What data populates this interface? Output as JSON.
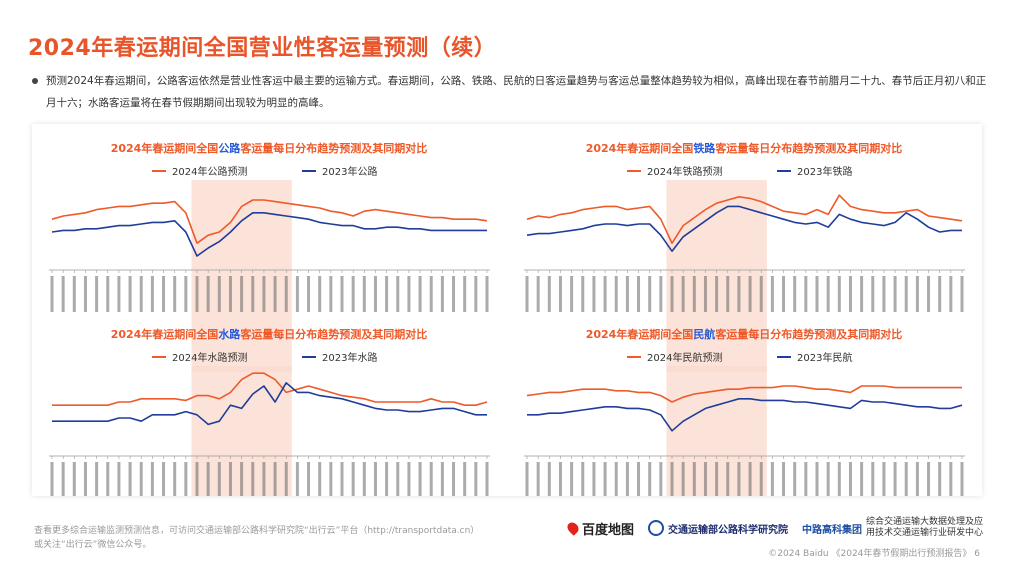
{
  "page": {
    "title": "2024年春运期间全国营业性客运量预测（续）",
    "bullet": "预测2024年春运期间，公路客运依然是营业性客运中最主要的运输方式。春运期间，公路、铁路、民航的日客运量趋势与客运总量整体趋势较为相似，高峰出现在春节前腊月二十九、春节后正月初八和正月十六；水路客运量将在春节假期期间出现较为明显的高峰。",
    "footer_line1": "查看更多综合运输监测预测信息，可访问交通运输部公路科学研究院“出行云”平台（http://transportdata.cn）",
    "footer_line2": "或关注“出行云”微信公众号。",
    "copyright": "©2024 Baidu 《2024年春节假期出行预测报告》 6",
    "logos": {
      "baidu": "百度地图",
      "transport_institute": "交通运输部公路科学研究院",
      "rioh": "中路高科集团",
      "rioh_sub1": "综合交通运输大数据处理及应",
      "rioh_sub2": "用技术交通运输行业研发中心"
    }
  },
  "colors": {
    "forecast": "#ee5a2a",
    "lastyear": "#1f3d99",
    "highlight": "#fbd9cc",
    "title_accent": "#ee5a2a",
    "mode_accent": "#2a5bd7"
  },
  "chart_data": [
    {
      "type": "line",
      "title_pre": "2024年春运期间全国",
      "title_mode": "公路",
      "title_post": "客运量每日分布趋势预测及其同期对比",
      "highlight_range": [
        13,
        21
      ],
      "series": [
        {
          "name": "2024年公路预测",
          "values": [
            58,
            60,
            61,
            62,
            64,
            65,
            66,
            66,
            67,
            68,
            68,
            69,
            62,
            43,
            48,
            50,
            56,
            66,
            70,
            70,
            69,
            68,
            67,
            66,
            65,
            63,
            62,
            60,
            63,
            64,
            63,
            62,
            61,
            60,
            59,
            59,
            58,
            58,
            58,
            57
          ]
        },
        {
          "name": "2023年公路",
          "values": [
            50,
            51,
            51,
            52,
            52,
            53,
            54,
            54,
            55,
            56,
            56,
            57,
            50,
            35,
            40,
            44,
            50,
            57,
            62,
            62,
            61,
            60,
            59,
            58,
            56,
            55,
            54,
            54,
            52,
            52,
            53,
            53,
            52,
            52,
            51,
            51,
            51,
            51,
            51,
            51
          ]
        }
      ]
    },
    {
      "type": "line",
      "title_pre": "2024年春运期间全国",
      "title_mode": "铁路",
      "title_post": "客运量每日分布趋势预测及其同期对比",
      "highlight_range": [
        13,
        21
      ],
      "series": [
        {
          "name": "2024年铁路预测",
          "values": [
            58,
            60,
            59,
            61,
            62,
            64,
            65,
            66,
            66,
            64,
            65,
            66,
            58,
            43,
            54,
            59,
            64,
            68,
            70,
            72,
            71,
            69,
            66,
            63,
            62,
            61,
            64,
            61,
            73,
            66,
            64,
            63,
            62,
            62,
            63,
            64,
            60,
            59,
            58,
            57
          ]
        },
        {
          "name": "2023年铁路",
          "values": [
            48,
            49,
            49,
            50,
            51,
            52,
            54,
            55,
            55,
            54,
            55,
            55,
            48,
            38,
            47,
            52,
            57,
            62,
            66,
            66,
            64,
            62,
            60,
            58,
            56,
            55,
            56,
            53,
            61,
            58,
            56,
            55,
            54,
            56,
            62,
            58,
            53,
            50,
            51,
            51
          ]
        }
      ]
    },
    {
      "type": "line",
      "title_pre": "2024年春运期间全国",
      "title_mode": "水路",
      "title_post": "客运量每日分布趋势预测及其同期对比",
      "highlight_range": [
        13,
        21
      ],
      "series": [
        {
          "name": "2024年水路预测",
          "values": [
            58,
            58,
            58,
            58,
            58,
            58,
            60,
            60,
            62,
            62,
            62,
            62,
            61,
            64,
            64,
            62,
            66,
            74,
            78,
            78,
            74,
            66,
            68,
            70,
            68,
            66,
            64,
            63,
            62,
            60,
            60,
            60,
            60,
            60,
            62,
            60,
            60,
            58,
            58,
            60
          ]
        },
        {
          "name": "2023年水路",
          "values": [
            48,
            48,
            48,
            48,
            48,
            48,
            50,
            50,
            48,
            52,
            52,
            52,
            54,
            52,
            46,
            48,
            58,
            56,
            65,
            70,
            60,
            72,
            66,
            66,
            64,
            63,
            62,
            60,
            58,
            56,
            55,
            55,
            54,
            54,
            55,
            56,
            56,
            54,
            52,
            52
          ]
        }
      ]
    },
    {
      "type": "line",
      "title_pre": "2024年春运期间全国",
      "title_mode": "民航",
      "title_post": "客运量每日分布趋势预测及其同期对比",
      "highlight_range": [
        13,
        21
      ],
      "series": [
        {
          "name": "2024年民航预测",
          "values": [
            64,
            65,
            66,
            66,
            67,
            68,
            68,
            68,
            67,
            67,
            66,
            66,
            64,
            60,
            63,
            65,
            66,
            67,
            68,
            68,
            69,
            69,
            69,
            70,
            70,
            69,
            68,
            68,
            67,
            66,
            70,
            70,
            70,
            69,
            69,
            69,
            69,
            69,
            69,
            69
          ]
        },
        {
          "name": "2023年民航",
          "values": [
            52,
            52,
            53,
            53,
            54,
            55,
            56,
            57,
            57,
            56,
            56,
            55,
            52,
            42,
            48,
            52,
            56,
            58,
            60,
            62,
            62,
            61,
            61,
            61,
            60,
            60,
            59,
            58,
            57,
            56,
            61,
            60,
            60,
            59,
            58,
            57,
            57,
            56,
            56,
            58
          ]
        }
      ]
    }
  ]
}
